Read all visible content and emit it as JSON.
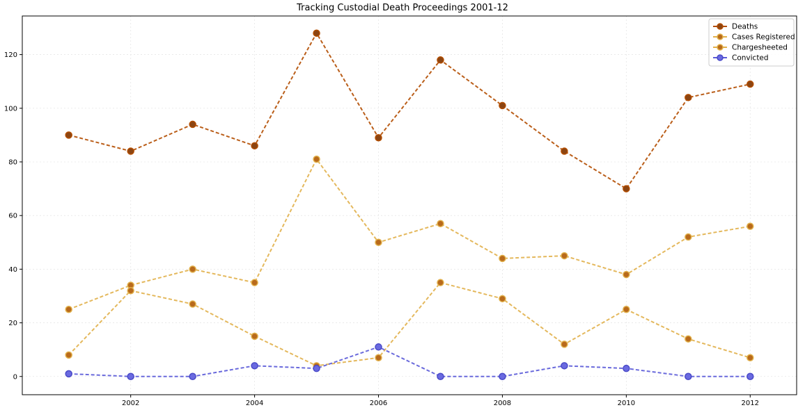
{
  "chart_data": {
    "type": "line",
    "title": "Tracking Custodial Death Proceedings 2001-12",
    "xlabel": "",
    "ylabel": "",
    "x": [
      2001,
      2002,
      2003,
      2004,
      2005,
      2006,
      2007,
      2008,
      2009,
      2010,
      2011,
      2012
    ],
    "xlim": [
      2000.25,
      2012.75
    ],
    "ylim": [
      -6.8,
      134.4
    ],
    "x_ticks": [
      "2002",
      "2004",
      "2006",
      "2008",
      "2010",
      "2012"
    ],
    "y_ticks": [
      "0",
      "20",
      "40",
      "60",
      "80",
      "100",
      "120"
    ],
    "grid": true,
    "legend_position": "top-right",
    "series": [
      {
        "name": "Deaths",
        "values": [
          90,
          84,
          94,
          86,
          128,
          89,
          118,
          101,
          84,
          70,
          104,
          109
        ],
        "color": "#b34d00",
        "marker_color": "#8b4513",
        "marker_edge": "#b34d00"
      },
      {
        "name": "Cases Registered",
        "values": [
          25,
          34,
          40,
          35,
          81,
          50,
          57,
          44,
          45,
          38,
          52,
          56
        ],
        "color": "#e1b04a",
        "marker_color": "#b86a1c",
        "marker_edge": "#e1b04a"
      },
      {
        "name": "Chargesheeted",
        "values": [
          8,
          32,
          27,
          15,
          4,
          7,
          35,
          29,
          12,
          25,
          14,
          7
        ],
        "color": "#e1b04a",
        "marker_color": "#b86a1c",
        "marker_edge": "#e1b04a"
      },
      {
        "name": "Convicted",
        "values": [
          1,
          0,
          0,
          4,
          3,
          11,
          0,
          0,
          4,
          3,
          0,
          0
        ],
        "color": "#5a5ad8",
        "marker_color": "#6a6ae0",
        "marker_edge": "#4a4ac8"
      }
    ]
  }
}
